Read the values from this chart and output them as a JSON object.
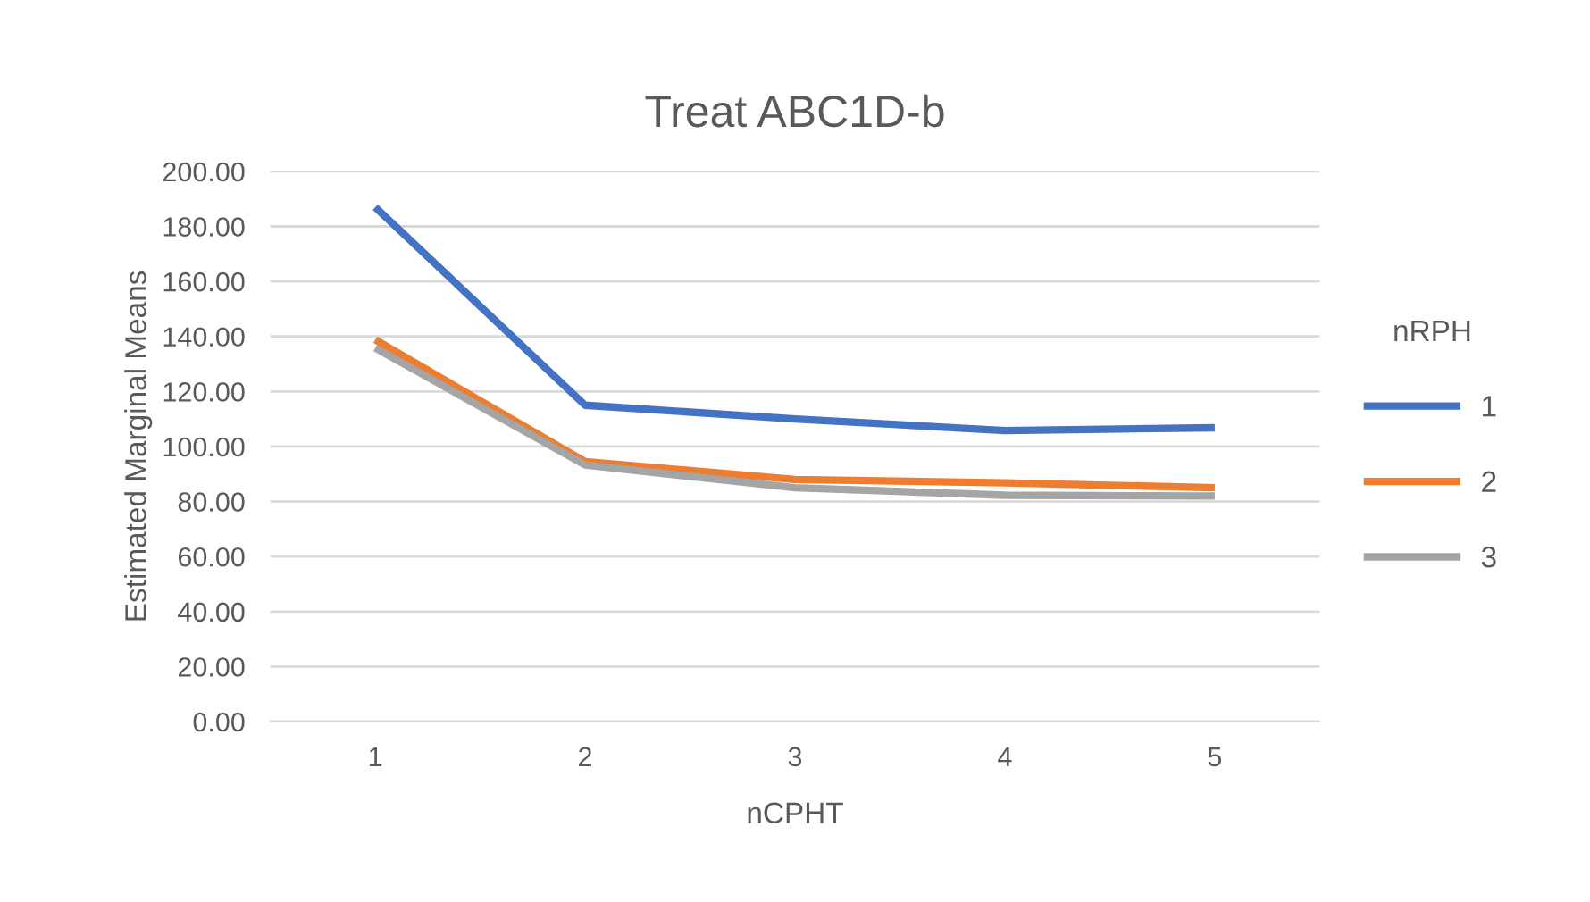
{
  "chart_data": {
    "type": "line",
    "title": "Treat ABC1D-b",
    "xlabel": "nCPHT",
    "ylabel": "Estimated Marginal Means",
    "legend_title": "nRPH",
    "categories": [
      "1",
      "2",
      "3",
      "4",
      "5"
    ],
    "series": [
      {
        "name": "1",
        "color": "#4472c4",
        "values": [
          187,
          115,
          110,
          105.8,
          106.8
        ]
      },
      {
        "name": "2",
        "color": "#ed7d31",
        "values": [
          138.8,
          94.5,
          88,
          86.8,
          85
        ]
      },
      {
        "name": "3",
        "color": "#a5a5a5",
        "values": [
          135.8,
          93.3,
          85,
          82.3,
          82
        ]
      }
    ],
    "ylim": [
      0,
      200
    ],
    "yticks": [
      {
        "value": 0,
        "label": "0.00"
      },
      {
        "value": 20,
        "label": "20.00"
      },
      {
        "value": 40,
        "label": "40.00"
      },
      {
        "value": 60,
        "label": "60.00"
      },
      {
        "value": 80,
        "label": "80.00"
      },
      {
        "value": 100,
        "label": "100.00"
      },
      {
        "value": 120,
        "label": "120.00"
      },
      {
        "value": 140,
        "label": "140.00"
      },
      {
        "value": 160,
        "label": "160.00"
      },
      {
        "value": 180,
        "label": "180.00"
      },
      {
        "value": 200,
        "label": "200.00"
      }
    ],
    "grid": "y",
    "legend": "right",
    "marker": "none",
    "line_style": "solid"
  }
}
